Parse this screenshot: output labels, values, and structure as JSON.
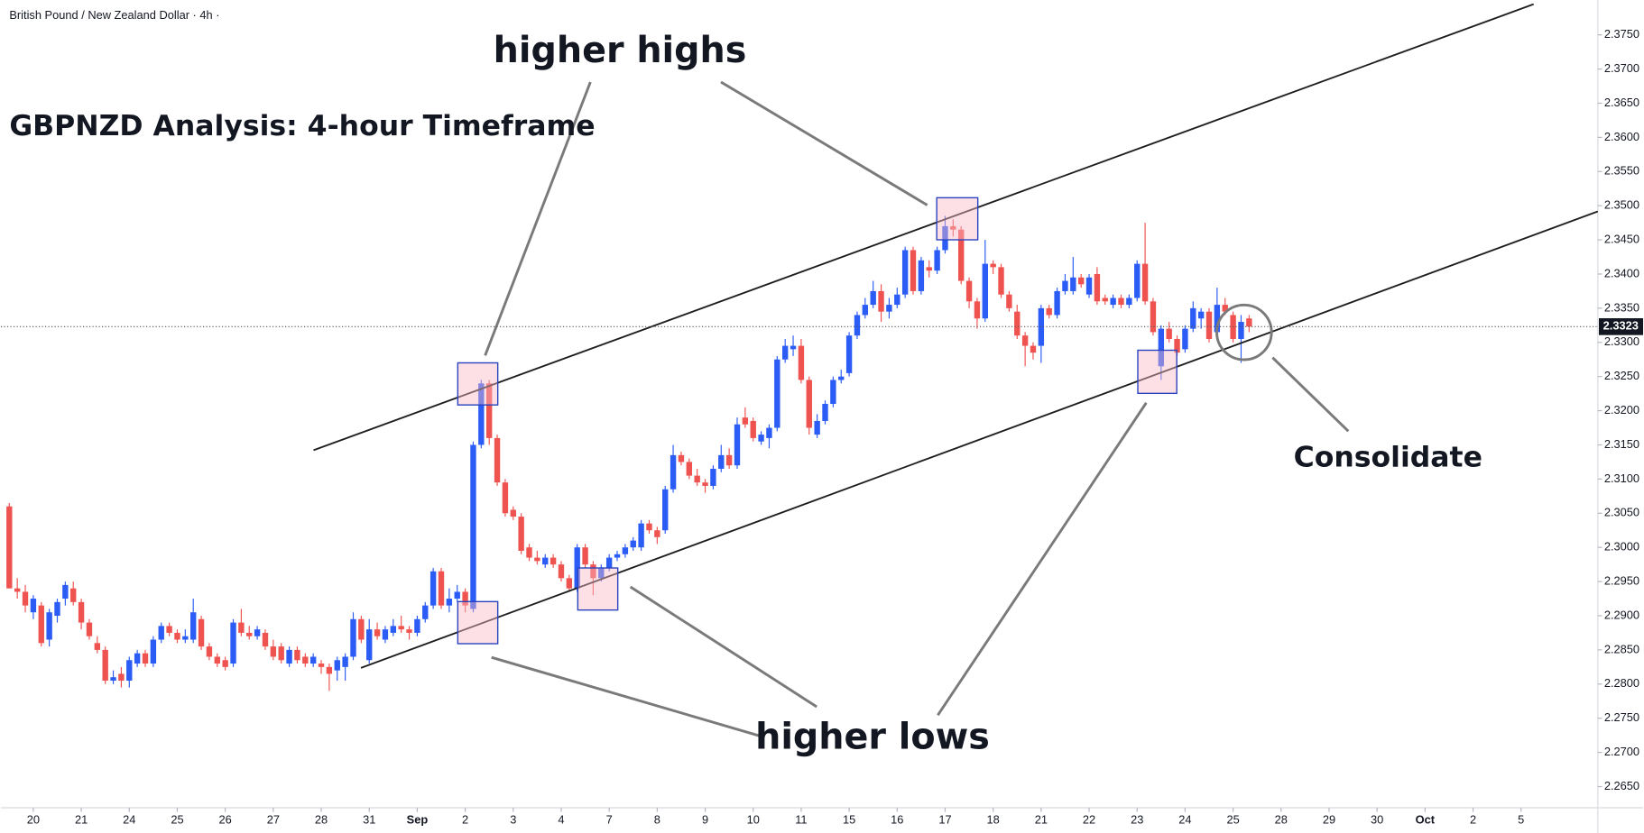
{
  "chart_data": {
    "type": "candlestick",
    "title": "British Pound / New Zealand Dollar · 4h ·",
    "annotations": {
      "headline": "GBPNZD Analysis: 4-hour Timeframe",
      "higher_highs": "higher highs",
      "higher_lows": "higher lows",
      "consolidate": "Consolidate"
    },
    "up_color": "#2b5cf5",
    "down_color": "#ef5350",
    "ohlc": [
      [
        2.306,
        2.3065,
        2.294,
        2.294
      ],
      [
        2.294,
        2.2955,
        2.2925,
        2.2935
      ],
      [
        2.2935,
        2.2945,
        2.2905,
        2.2915
      ],
      [
        2.2905,
        2.293,
        2.2895,
        2.2925
      ],
      [
        2.2915,
        2.292,
        2.2855,
        2.286
      ],
      [
        2.2865,
        2.291,
        2.2855,
        2.2905
      ],
      [
        2.29,
        2.2925,
        2.289,
        2.292
      ],
      [
        2.2925,
        2.295,
        2.2915,
        2.2945
      ],
      [
        2.294,
        2.295,
        2.2915,
        2.292
      ],
      [
        2.292,
        2.2925,
        2.288,
        2.289
      ],
      [
        2.289,
        2.2895,
        2.2865,
        2.287
      ],
      [
        2.286,
        2.287,
        2.2845,
        2.285
      ],
      [
        2.285,
        2.2855,
        2.28,
        2.2805
      ],
      [
        2.2805,
        2.282,
        2.28,
        2.281
      ],
      [
        2.2815,
        2.2825,
        2.2795,
        2.2805
      ],
      [
        2.2805,
        2.284,
        2.2795,
        2.2835
      ],
      [
        2.283,
        2.285,
        2.2825,
        2.2845
      ],
      [
        2.2845,
        2.285,
        2.2825,
        2.283
      ],
      [
        2.283,
        2.287,
        2.2825,
        2.2865
      ],
      [
        2.2865,
        2.289,
        2.286,
        2.2885
      ],
      [
        2.2885,
        2.289,
        2.287,
        2.2875
      ],
      [
        2.2875,
        2.288,
        2.286,
        2.2865
      ],
      [
        2.2865,
        2.288,
        2.286,
        2.287
      ],
      [
        2.2865,
        2.2925,
        2.286,
        2.2905
      ],
      [
        2.2895,
        2.29,
        2.285,
        2.2855
      ],
      [
        2.2855,
        2.286,
        2.2835,
        2.284
      ],
      [
        2.284,
        2.2845,
        2.2825,
        2.283
      ],
      [
        2.2835,
        2.284,
        2.282,
        2.2825
      ],
      [
        2.283,
        2.2895,
        2.2825,
        2.289
      ],
      [
        2.289,
        2.291,
        2.287,
        2.2875
      ],
      [
        2.2875,
        2.2885,
        2.2865,
        2.287
      ],
      [
        2.287,
        2.2885,
        2.2865,
        2.288
      ],
      [
        2.2875,
        2.288,
        2.285,
        2.2855
      ],
      [
        2.2855,
        2.2865,
        2.2835,
        2.284
      ],
      [
        2.2855,
        2.286,
        2.283,
        2.2835
      ],
      [
        2.283,
        2.2855,
        2.2825,
        2.285
      ],
      [
        2.285,
        2.2855,
        2.283,
        2.2835
      ],
      [
        2.284,
        2.2845,
        2.2825,
        2.283
      ],
      [
        2.283,
        2.2845,
        2.2825,
        2.284
      ],
      [
        2.283,
        2.2835,
        2.2815,
        2.2825
      ],
      [
        2.2825,
        2.283,
        2.279,
        2.2815
      ],
      [
        2.282,
        2.284,
        2.2805,
        2.2835
      ],
      [
        2.2825,
        2.2845,
        2.2805,
        2.284
      ],
      [
        2.284,
        2.2905,
        2.2835,
        2.2895
      ],
      [
        2.2895,
        2.29,
        2.286,
        2.2865
      ],
      [
        2.2835,
        2.2895,
        2.283,
        2.288
      ],
      [
        2.288,
        2.289,
        2.2865,
        2.287
      ],
      [
        2.2865,
        2.2885,
        2.286,
        2.288
      ],
      [
        2.2875,
        2.2895,
        2.287,
        2.2885
      ],
      [
        2.2885,
        2.29,
        2.2875,
        2.288
      ],
      [
        2.288,
        2.2885,
        2.2865,
        2.2875
      ],
      [
        2.2875,
        2.29,
        2.287,
        2.2895
      ],
      [
        2.2895,
        2.292,
        2.289,
        2.2915
      ],
      [
        2.2915,
        2.297,
        2.291,
        2.2965
      ],
      [
        2.2965,
        2.297,
        2.291,
        2.2915
      ],
      [
        2.2915,
        2.294,
        2.2905,
        2.2925
      ],
      [
        2.2925,
        2.2945,
        2.292,
        2.2935
      ],
      [
        2.2935,
        2.294,
        2.2905,
        2.2915
      ],
      [
        2.291,
        2.3155,
        2.2905,
        2.315
      ],
      [
        2.315,
        2.3245,
        2.3145,
        2.324
      ],
      [
        2.324,
        2.3245,
        2.315,
        2.316
      ],
      [
        2.316,
        2.3165,
        2.309,
        2.3095
      ],
      [
        2.3095,
        2.31,
        2.3045,
        2.305
      ],
      [
        2.3055,
        2.306,
        2.304,
        2.3045
      ],
      [
        2.3045,
        2.305,
        2.299,
        2.2995
      ],
      [
        2.3,
        2.3005,
        2.298,
        2.2985
      ],
      [
        2.2985,
        2.2995,
        2.2975,
        2.298
      ],
      [
        2.2975,
        2.299,
        2.297,
        2.2985
      ],
      [
        2.2985,
        2.299,
        2.297,
        2.2975
      ],
      [
        2.2975,
        2.298,
        2.295,
        2.2955
      ],
      [
        2.2955,
        2.296,
        2.2935,
        2.294
      ],
      [
        2.294,
        2.3005,
        2.2935,
        2.3
      ],
      [
        2.3,
        2.3005,
        2.297,
        2.2975
      ],
      [
        2.2975,
        2.298,
        2.293,
        2.2955
      ],
      [
        2.2955,
        2.2975,
        2.295,
        2.297
      ],
      [
        2.297,
        2.299,
        2.2965,
        2.2985
      ],
      [
        2.2985,
        2.2995,
        2.298,
        2.299
      ],
      [
        2.299,
        2.3005,
        2.2985,
        2.3
      ],
      [
        2.3,
        2.3015,
        2.2995,
        2.301
      ],
      [
        2.3,
        2.304,
        2.2995,
        2.3035
      ],
      [
        2.3035,
        2.304,
        2.302,
        2.3025
      ],
      [
        2.3025,
        2.303,
        2.3005,
        2.3015
      ],
      [
        2.3025,
        2.309,
        2.302,
        2.3085
      ],
      [
        2.3085,
        2.315,
        2.308,
        2.3135
      ],
      [
        2.3135,
        2.314,
        2.312,
        2.3125
      ],
      [
        2.3125,
        2.313,
        2.31,
        2.3105
      ],
      [
        2.3105,
        2.3115,
        2.309,
        2.3095
      ],
      [
        2.3095,
        2.31,
        2.308,
        2.309
      ],
      [
        2.309,
        2.312,
        2.3085,
        2.3115
      ],
      [
        2.3115,
        2.315,
        2.311,
        2.3135
      ],
      [
        2.3135,
        2.3145,
        2.3115,
        2.312
      ],
      [
        2.312,
        2.319,
        2.3115,
        2.318
      ],
      [
        2.319,
        2.3205,
        2.3175,
        2.318
      ],
      [
        2.3185,
        2.319,
        2.3155,
        2.316
      ],
      [
        2.3155,
        2.317,
        2.315,
        2.3165
      ],
      [
        2.316,
        2.318,
        2.3145,
        2.3175
      ],
      [
        2.3175,
        2.328,
        2.317,
        2.3275
      ],
      [
        2.3275,
        2.3305,
        2.327,
        2.3295
      ],
      [
        2.329,
        2.331,
        2.328,
        2.3295
      ],
      [
        2.3295,
        2.3305,
        2.324,
        2.3245
      ],
      [
        2.3245,
        2.325,
        2.3165,
        2.3175
      ],
      [
        2.3165,
        2.3195,
        2.316,
        2.3185
      ],
      [
        2.3185,
        2.3215,
        2.318,
        2.321
      ],
      [
        2.321,
        2.325,
        2.3205,
        2.3245
      ],
      [
        2.3245,
        2.326,
        2.324,
        2.325
      ],
      [
        2.3255,
        2.3315,
        2.325,
        2.331
      ],
      [
        2.331,
        2.3345,
        2.3305,
        2.334
      ],
      [
        2.334,
        2.3365,
        2.3335,
        2.3355
      ],
      [
        2.3355,
        2.339,
        2.335,
        2.3375
      ],
      [
        2.3375,
        2.3385,
        2.333,
        2.3345
      ],
      [
        2.3345,
        2.3365,
        2.3335,
        2.3355
      ],
      [
        2.3355,
        2.338,
        2.335,
        2.337
      ],
      [
        2.337,
        2.344,
        2.3365,
        2.3435
      ],
      [
        2.3435,
        2.344,
        2.337,
        2.3375
      ],
      [
        2.3375,
        2.3425,
        2.337,
        2.342
      ],
      [
        2.341,
        2.342,
        2.3395,
        2.3405
      ],
      [
        2.3405,
        2.344,
        2.34,
        2.3435
      ],
      [
        2.3435,
        2.3485,
        2.343,
        2.347
      ],
      [
        2.347,
        2.348,
        2.3455,
        2.3465
      ],
      [
        2.3465,
        2.347,
        2.3385,
        2.339
      ],
      [
        2.339,
        2.3395,
        2.335,
        2.336
      ],
      [
        2.336,
        2.3365,
        2.332,
        2.3335
      ],
      [
        2.3335,
        2.345,
        2.333,
        2.3415
      ],
      [
        2.3415,
        2.342,
        2.34,
        2.341
      ],
      [
        2.341,
        2.3415,
        2.3365,
        2.337
      ],
      [
        2.337,
        2.3375,
        2.3345,
        2.335
      ],
      [
        2.3345,
        2.3355,
        2.3305,
        2.331
      ],
      [
        2.331,
        2.3315,
        2.3265,
        2.3295
      ],
      [
        2.3295,
        2.33,
        2.3275,
        2.3285
      ],
      [
        2.3295,
        2.3355,
        2.327,
        2.335
      ],
      [
        2.335,
        2.3355,
        2.3335,
        2.334
      ],
      [
        2.334,
        2.338,
        2.3335,
        2.3375
      ],
      [
        2.3375,
        2.34,
        2.337,
        2.339
      ],
      [
        2.3375,
        2.3425,
        2.337,
        2.3395
      ],
      [
        2.3395,
        2.34,
        2.338,
        2.3385
      ],
      [
        2.337,
        2.34,
        2.3365,
        2.3395
      ],
      [
        2.34,
        2.341,
        2.3355,
        2.336
      ],
      [
        2.3365,
        2.337,
        2.3355,
        2.336
      ],
      [
        2.3355,
        2.337,
        2.335,
        2.3365
      ],
      [
        2.3365,
        2.337,
        2.335,
        2.3355
      ],
      [
        2.3355,
        2.337,
        2.335,
        2.3365
      ],
      [
        2.3365,
        2.342,
        2.336,
        2.3415
      ],
      [
        2.3415,
        2.3475,
        2.3355,
        2.336
      ],
      [
        2.336,
        2.3365,
        2.331,
        2.3315
      ],
      [
        2.3265,
        2.3325,
        2.3245,
        2.332
      ],
      [
        2.332,
        2.333,
        2.33,
        2.3305
      ],
      [
        2.3305,
        2.331,
        2.328,
        2.3285
      ],
      [
        2.329,
        2.3325,
        2.3285,
        2.332
      ],
      [
        2.332,
        2.336,
        2.3315,
        2.335
      ],
      [
        2.3335,
        2.335,
        2.332,
        2.3345
      ],
      [
        2.3345,
        2.335,
        2.33,
        2.3305
      ],
      [
        2.3315,
        2.338,
        2.331,
        2.3355
      ],
      [
        2.3355,
        2.3365,
        2.334,
        2.3345
      ],
      [
        2.334,
        2.3345,
        2.33,
        2.3305
      ],
      [
        2.3305,
        2.334,
        2.327,
        2.333
      ],
      [
        2.3335,
        2.334,
        2.3315,
        2.3323
      ]
    ],
    "xlim": [
      -1.05,
      198.6
    ],
    "xticks": [
      {
        "value": 3,
        "label": "20"
      },
      {
        "value": 9,
        "label": "21"
      },
      {
        "value": 15,
        "label": "24"
      },
      {
        "value": 21,
        "label": "25"
      },
      {
        "value": 27,
        "label": "26"
      },
      {
        "value": 33,
        "label": "27"
      },
      {
        "value": 39,
        "label": "28"
      },
      {
        "value": 45,
        "label": "31"
      },
      {
        "value": 51,
        "label": "Sep"
      },
      {
        "value": 57,
        "label": "2"
      },
      {
        "value": 63,
        "label": "3"
      },
      {
        "value": 69,
        "label": "4"
      },
      {
        "value": 75,
        "label": "7"
      },
      {
        "value": 81,
        "label": "8"
      },
      {
        "value": 87,
        "label": "9"
      },
      {
        "value": 93,
        "label": "10"
      },
      {
        "value": 99,
        "label": "11"
      },
      {
        "value": 105,
        "label": "15"
      },
      {
        "value": 111,
        "label": "16"
      },
      {
        "value": 117,
        "label": "17"
      },
      {
        "value": 123,
        "label": "18"
      },
      {
        "value": 129,
        "label": "21"
      },
      {
        "value": 135,
        "label": "22"
      },
      {
        "value": 141,
        "label": "23"
      },
      {
        "value": 147,
        "label": "24"
      },
      {
        "value": 153,
        "label": "25"
      },
      {
        "value": 159,
        "label": "28"
      },
      {
        "value": 165,
        "label": "29"
      },
      {
        "value": 171,
        "label": "30"
      },
      {
        "value": 177,
        "label": "Oct"
      },
      {
        "value": 183,
        "label": "2"
      },
      {
        "value": 189,
        "label": "5"
      }
    ],
    "ylim": [
      2.2619,
      2.3801
    ],
    "yticks": [
      {
        "value": 2.265,
        "label": "2.2650"
      },
      {
        "value": 2.27,
        "label": "2.2700"
      },
      {
        "value": 2.275,
        "label": "2.2750"
      },
      {
        "value": 2.28,
        "label": "2.2800"
      },
      {
        "value": 2.285,
        "label": "2.2850"
      },
      {
        "value": 2.29,
        "label": "2.2900"
      },
      {
        "value": 2.295,
        "label": "2.2950"
      },
      {
        "value": 2.3,
        "label": "2.3000"
      },
      {
        "value": 2.305,
        "label": "2.3050"
      },
      {
        "value": 2.31,
        "label": "2.3100"
      },
      {
        "value": 2.315,
        "label": "2.3150"
      },
      {
        "value": 2.32,
        "label": "2.3200"
      },
      {
        "value": 2.325,
        "label": "2.3250"
      },
      {
        "value": 2.33,
        "label": "2.3300"
      },
      {
        "value": 2.335,
        "label": "2.3350"
      },
      {
        "value": 2.34,
        "label": "2.3400"
      },
      {
        "value": 2.345,
        "label": "2.3450"
      },
      {
        "value": 2.35,
        "label": "2.3500"
      },
      {
        "value": 2.355,
        "label": "2.3550"
      },
      {
        "value": 2.36,
        "label": "2.3600"
      },
      {
        "value": 2.365,
        "label": "2.3650"
      },
      {
        "value": 2.37,
        "label": "2.3700"
      },
      {
        "value": 2.375,
        "label": "2.3750"
      }
    ],
    "last_price": 2.3323
  }
}
